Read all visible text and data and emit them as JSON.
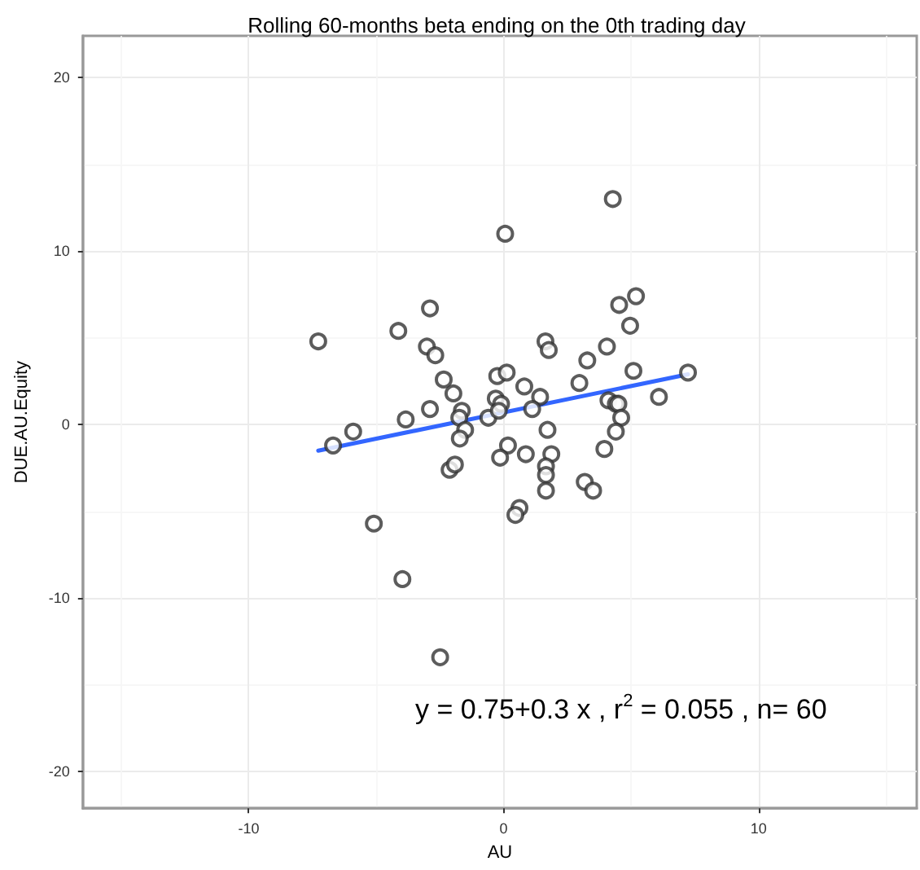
{
  "chart_data": {
    "type": "scatter",
    "title": "Rolling 60-months beta ending on the 0th trading day",
    "xlabel": "AU",
    "ylabel": "DUE.AU.Equity",
    "xlim": [
      -16.5,
      16.2
    ],
    "xticks": [
      -10,
      0,
      10
    ],
    "ylim": [
      -22.1,
      22.4
    ],
    "yticks": [
      -20,
      -10,
      0,
      10,
      20
    ],
    "grid": true,
    "annotations": [
      "y = 0.75+0.3 x , r$^{2}$ = 0.055 , n= 60"
    ],
    "series": [
      {
        "marker": "circle",
        "color": "#333333",
        "x": [
          -7.27,
          -4.13,
          -2.89,
          -3.01,
          -2.68,
          -2.35,
          -1.97,
          -2.89,
          -3.84,
          -5.9,
          -6.69,
          -1.64,
          -1.74,
          -1.51,
          -1.72,
          -0.6,
          -0.25,
          0.12,
          -0.31,
          -0.1,
          -0.19,
          0.06,
          0.81,
          0.17,
          -0.14,
          0.87,
          4.28,
          5.19,
          4.53,
          4.96,
          1.64,
          1.77,
          4.05,
          3.28,
          2.97,
          5.09,
          7.23,
          1.43,
          1.12,
          4.11,
          4.4,
          4.5,
          4.61,
          6.09,
          1.72,
          4.4,
          3.95,
          1.87,
          1.66,
          1.66,
          1.66,
          3.18,
          3.51,
          0.62,
          0.46,
          -5.09,
          -3.97,
          -2.49,
          -2.12,
          -1.91
        ],
        "values": [
          4.8,
          5.4,
          6.7,
          4.5,
          4.0,
          2.6,
          1.8,
          0.9,
          0.3,
          -0.4,
          -1.2,
          0.8,
          0.4,
          -0.3,
          -0.8,
          0.4,
          2.8,
          3.0,
          1.5,
          1.2,
          0.8,
          11.0,
          2.2,
          -1.2,
          -1.9,
          -1.7,
          13.0,
          7.4,
          6.9,
          5.7,
          4.8,
          4.3,
          4.5,
          3.7,
          2.4,
          3.1,
          3.0,
          1.6,
          0.9,
          1.4,
          1.2,
          1.2,
          0.4,
          1.6,
          -0.3,
          -0.4,
          -1.4,
          -1.7,
          -2.4,
          -2.9,
          -3.8,
          -3.3,
          -3.8,
          -4.8,
          -5.2,
          -5.7,
          -8.9,
          -13.4,
          -2.6,
          -2.3
        ]
      },
      {
        "type": "line",
        "marker": "none",
        "color": "#3366ff",
        "x": [
          -7.27,
          7.23
        ],
        "values": [
          -1.5,
          2.9
        ]
      }
    ]
  }
}
